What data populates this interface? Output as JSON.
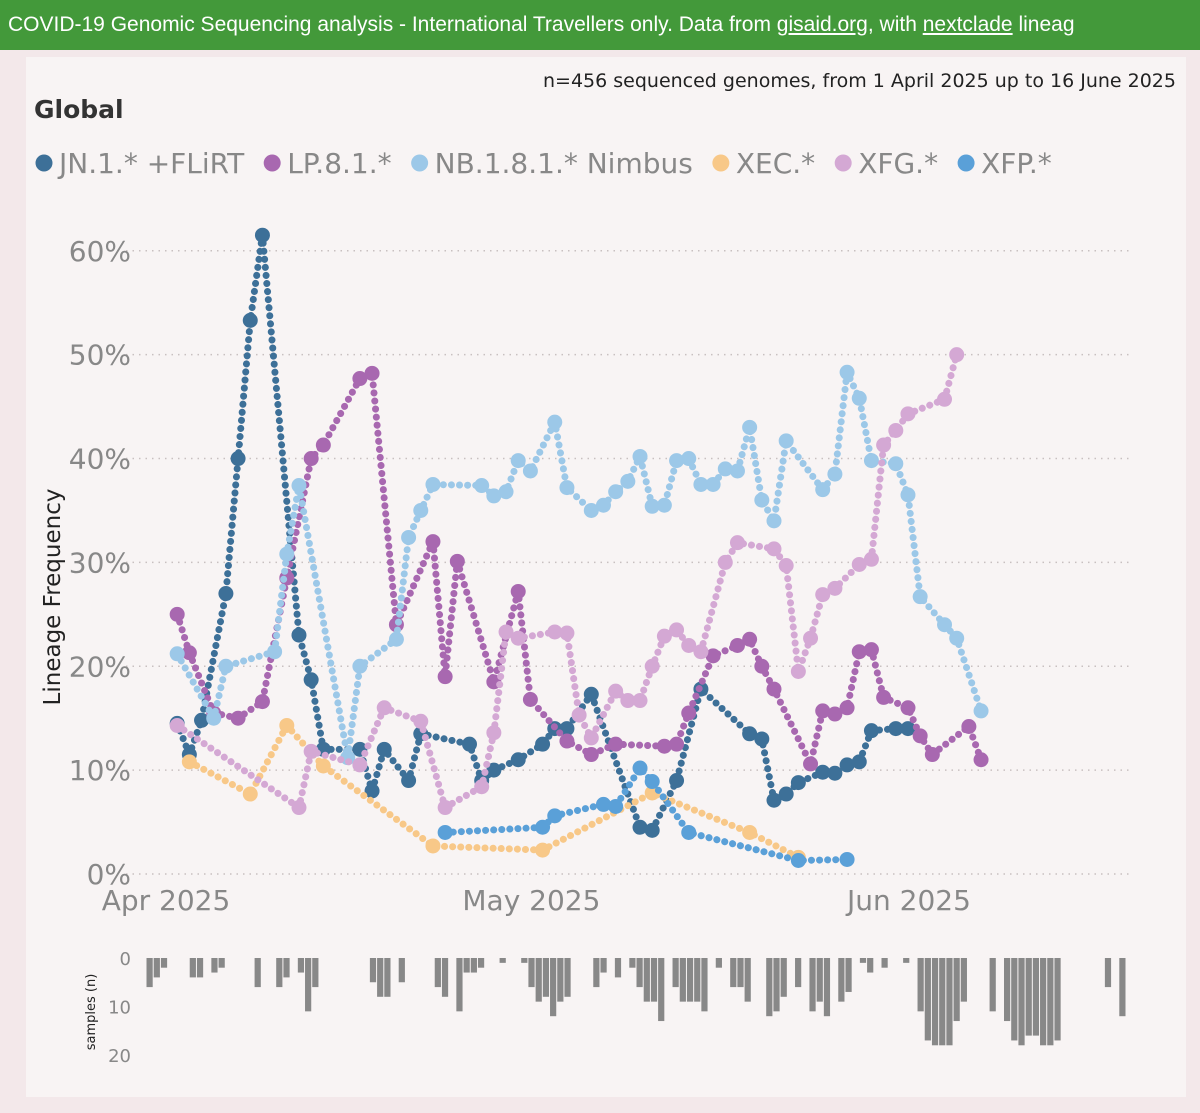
{
  "banner": {
    "text_1": "COVID-19 Genomic Sequencing analysis - International Travellers only. Data from ",
    "link_1": "gisaid.org",
    "text_2": ", with ",
    "link_2": "nextclade",
    "text_3": " lineag"
  },
  "subtitle": "n=456 sequenced genomes, from 1 April 2025 up to 16 June 2025",
  "region_title": "Global",
  "colors": {
    "JN1": "#3d7098",
    "LP81": "#a868b0",
    "NB181": "#9cc8e8",
    "XEC": "#f8c888",
    "XFG": "#d4a8d4",
    "XFP": "#5aa0d8",
    "samples_bar": "#888888",
    "banner": "#43993a"
  },
  "chart_data": [
    {
      "type": "line",
      "title": "Global",
      "xlabel": "",
      "ylabel": "Lineage Frequency",
      "xlim": [
        0,
        77
      ],
      "ylim": [
        0,
        62
      ],
      "x_tick_labels": [
        {
          "day": 0,
          "label": "Apr 2025"
        },
        {
          "day": 30,
          "label": "May 2025"
        },
        {
          "day": 61,
          "label": "Jun 2025"
        }
      ],
      "y_ticks": [
        0,
        10,
        20,
        30,
        40,
        50,
        60
      ],
      "y_tick_labels": [
        "0%",
        "10%",
        "20%",
        "30%",
        "40%",
        "50%",
        "60%"
      ],
      "grid": "horizontal dotted",
      "legend_position": "top",
      "series": [
        {
          "key": "JN1",
          "name": "JN.1.* +FLiRT",
          "points": [
            [
              1,
              14.5
            ],
            [
              2,
              11.5
            ],
            [
              3,
              14.8
            ],
            [
              5,
              27
            ],
            [
              6,
              40
            ],
            [
              7,
              53.3
            ],
            [
              8,
              61.5
            ],
            [
              11,
              23
            ],
            [
              12,
              18.7
            ],
            [
              13,
              12
            ],
            [
              16,
              12
            ],
            [
              17,
              8
            ],
            [
              18,
              12
            ],
            [
              20,
              9
            ],
            [
              21,
              13.5
            ],
            [
              25,
              12.5
            ],
            [
              26,
              9
            ],
            [
              27,
              10
            ],
            [
              29,
              11
            ],
            [
              31,
              12.5
            ],
            [
              32,
              14
            ],
            [
              33,
              14
            ],
            [
              35,
              17.3
            ],
            [
              39,
              4.5
            ],
            [
              40,
              4.2
            ],
            [
              42,
              9
            ],
            [
              44,
              17.8
            ],
            [
              48,
              13.5
            ],
            [
              49,
              13
            ],
            [
              50,
              7.1
            ],
            [
              51,
              7.7
            ],
            [
              52,
              8.8
            ],
            [
              54,
              9.8
            ],
            [
              55,
              9.7
            ],
            [
              56,
              10.5
            ],
            [
              57,
              10.8
            ],
            [
              58,
              13.8
            ],
            [
              60,
              14
            ],
            [
              61,
              14
            ]
          ]
        },
        {
          "key": "LP81",
          "name": "LP.8.1.*",
          "points": [
            [
              1,
              25
            ],
            [
              2,
              21.3
            ],
            [
              4,
              15.5
            ],
            [
              6,
              15
            ],
            [
              8,
              16.6
            ],
            [
              10,
              28.5
            ],
            [
              12,
              40
            ],
            [
              13,
              41.3
            ],
            [
              16,
              47.7
            ],
            [
              17,
              48.2
            ],
            [
              19,
              24
            ],
            [
              22,
              32
            ],
            [
              23,
              19
            ],
            [
              24,
              30.1
            ],
            [
              27,
              18.5
            ],
            [
              29,
              27.2
            ],
            [
              30,
              16.8
            ],
            [
              33,
              12.8
            ],
            [
              35,
              11.5
            ],
            [
              37,
              12.5
            ],
            [
              41,
              12.3
            ],
            [
              42,
              12.5
            ],
            [
              43,
              15.5
            ],
            [
              45,
              21
            ],
            [
              47,
              22
            ],
            [
              48,
              22.6
            ],
            [
              49,
              20
            ],
            [
              50,
              17.8
            ],
            [
              53,
              10.6
            ],
            [
              54,
              15.7
            ],
            [
              55,
              15.4
            ],
            [
              56,
              16
            ],
            [
              57,
              21.4
            ],
            [
              58,
              21.6
            ],
            [
              59,
              17
            ],
            [
              61,
              16
            ],
            [
              62,
              13.3
            ],
            [
              63,
              11.5
            ],
            [
              66,
              14.2
            ],
            [
              67,
              11
            ]
          ]
        },
        {
          "key": "NB181",
          "name": "NB.1.8.1.* Nimbus",
          "points": [
            [
              1,
              21.2
            ],
            [
              4,
              15
            ],
            [
              5,
              20
            ],
            [
              9,
              21.4
            ],
            [
              10,
              30.8
            ],
            [
              11,
              37.4
            ],
            [
              15,
              11.2
            ],
            [
              16,
              20
            ],
            [
              19,
              22.6
            ],
            [
              20,
              32.4
            ],
            [
              21,
              35
            ],
            [
              22,
              37.5
            ],
            [
              26,
              37.4
            ],
            [
              27,
              36.4
            ],
            [
              28,
              36.8
            ],
            [
              29,
              39.8
            ],
            [
              30,
              38.8
            ],
            [
              32,
              43.5
            ],
            [
              33,
              37.2
            ],
            [
              35,
              35
            ],
            [
              36,
              35.5
            ],
            [
              37,
              36.8
            ],
            [
              38,
              37.8
            ],
            [
              39,
              40.2
            ],
            [
              40,
              35.4
            ],
            [
              41,
              35.5
            ],
            [
              42,
              39.8
            ],
            [
              43,
              40
            ],
            [
              44,
              37.5
            ],
            [
              45,
              37.5
            ],
            [
              46,
              39
            ],
            [
              47,
              38.8
            ],
            [
              48,
              43
            ],
            [
              49,
              36
            ],
            [
              50,
              34
            ],
            [
              51,
              41.7
            ],
            [
              54,
              37
            ],
            [
              55,
              38.5
            ],
            [
              56,
              48.3
            ],
            [
              57,
              45.8
            ],
            [
              58,
              39.8
            ],
            [
              60,
              39.5
            ],
            [
              61,
              36.5
            ],
            [
              62,
              26.7
            ],
            [
              64,
              24
            ],
            [
              65,
              22.7
            ],
            [
              67,
              15.7
            ]
          ]
        },
        {
          "key": "XEC",
          "name": "XEC.*",
          "points": [
            [
              2,
              10.8
            ],
            [
              7,
              7.7
            ],
            [
              10,
              14.3
            ],
            [
              13,
              10.4
            ],
            [
              22,
              2.7
            ],
            [
              31,
              2.3
            ],
            [
              40,
              7.8
            ],
            [
              48,
              4
            ],
            [
              52,
              1.6
            ]
          ]
        },
        {
          "key": "XFG",
          "name": "XFG.*",
          "points": [
            [
              1,
              14.3
            ],
            [
              11,
              6.4
            ],
            [
              12,
              11.8
            ],
            [
              16,
              10.5
            ],
            [
              18,
              16
            ],
            [
              21,
              14.7
            ],
            [
              23,
              6.4
            ],
            [
              26,
              8.4
            ],
            [
              27,
              13.6
            ],
            [
              28,
              23.3
            ],
            [
              29,
              22.7
            ],
            [
              32,
              23.3
            ],
            [
              33,
              23.2
            ],
            [
              34,
              15.3
            ],
            [
              35,
              13.1
            ],
            [
              37,
              17.6
            ],
            [
              38,
              16.7
            ],
            [
              39,
              16.7
            ],
            [
              40,
              20
            ],
            [
              41,
              22.9
            ],
            [
              42,
              23.5
            ],
            [
              43,
              22
            ],
            [
              44,
              21.4
            ],
            [
              46,
              30
            ],
            [
              47,
              31.9
            ],
            [
              50,
              31.3
            ],
            [
              51,
              29.7
            ],
            [
              52,
              19.5
            ],
            [
              53,
              22.7
            ],
            [
              54,
              26.9
            ],
            [
              55,
              27.5
            ],
            [
              57,
              29.8
            ],
            [
              58,
              30.3
            ],
            [
              59,
              41.3
            ],
            [
              60,
              42.7
            ],
            [
              61,
              44.3
            ],
            [
              64,
              45.7
            ],
            [
              65,
              50
            ]
          ]
        },
        {
          "key": "XFP",
          "name": "XFP.*",
          "points": [
            [
              23,
              4
            ],
            [
              31,
              4.5
            ],
            [
              32,
              5.6
            ],
            [
              36,
              6.7
            ],
            [
              37,
              6.5
            ],
            [
              39,
              10.2
            ],
            [
              40,
              8.9
            ],
            [
              43,
              4
            ],
            [
              52,
              1.3
            ],
            [
              56,
              1.4
            ]
          ]
        }
      ]
    },
    {
      "type": "bar",
      "title": "",
      "xlabel": "",
      "ylabel": "samples (n)",
      "ylim": [
        0,
        20
      ],
      "y_ticks": [
        0,
        10,
        20
      ],
      "y_tick_labels": [
        "0",
        "10",
        "20"
      ],
      "orientation": "downward",
      "values": [
        6,
        4,
        2,
        0,
        0,
        0,
        4,
        4,
        0,
        3,
        2,
        0,
        0,
        0,
        0,
        6,
        0,
        0,
        6,
        4,
        0,
        3,
        11,
        6,
        0,
        0,
        0,
        0,
        0,
        0,
        0,
        5,
        8,
        8,
        0,
        5,
        0,
        0,
        0,
        0,
        6,
        8,
        0,
        11,
        3,
        3,
        2,
        0,
        0,
        1,
        0,
        0,
        1,
        6,
        9,
        8,
        12,
        9,
        8,
        0,
        0,
        0,
        6,
        3,
        0,
        4,
        0,
        2,
        6,
        9,
        9,
        13,
        0,
        6,
        9,
        9,
        9,
        11,
        0,
        2,
        0,
        6,
        6,
        9,
        0,
        0,
        12,
        11,
        8,
        0,
        6,
        0,
        11,
        9,
        12,
        0,
        9,
        7,
        0,
        1,
        3,
        0,
        2,
        0,
        0,
        1,
        0,
        11,
        17,
        18,
        18,
        18,
        13,
        9,
        0,
        0,
        0,
        11,
        0,
        13,
        17,
        18,
        16,
        16,
        18,
        18,
        17,
        0,
        0,
        0,
        0,
        0,
        0,
        6,
        0,
        12
      ]
    }
  ]
}
